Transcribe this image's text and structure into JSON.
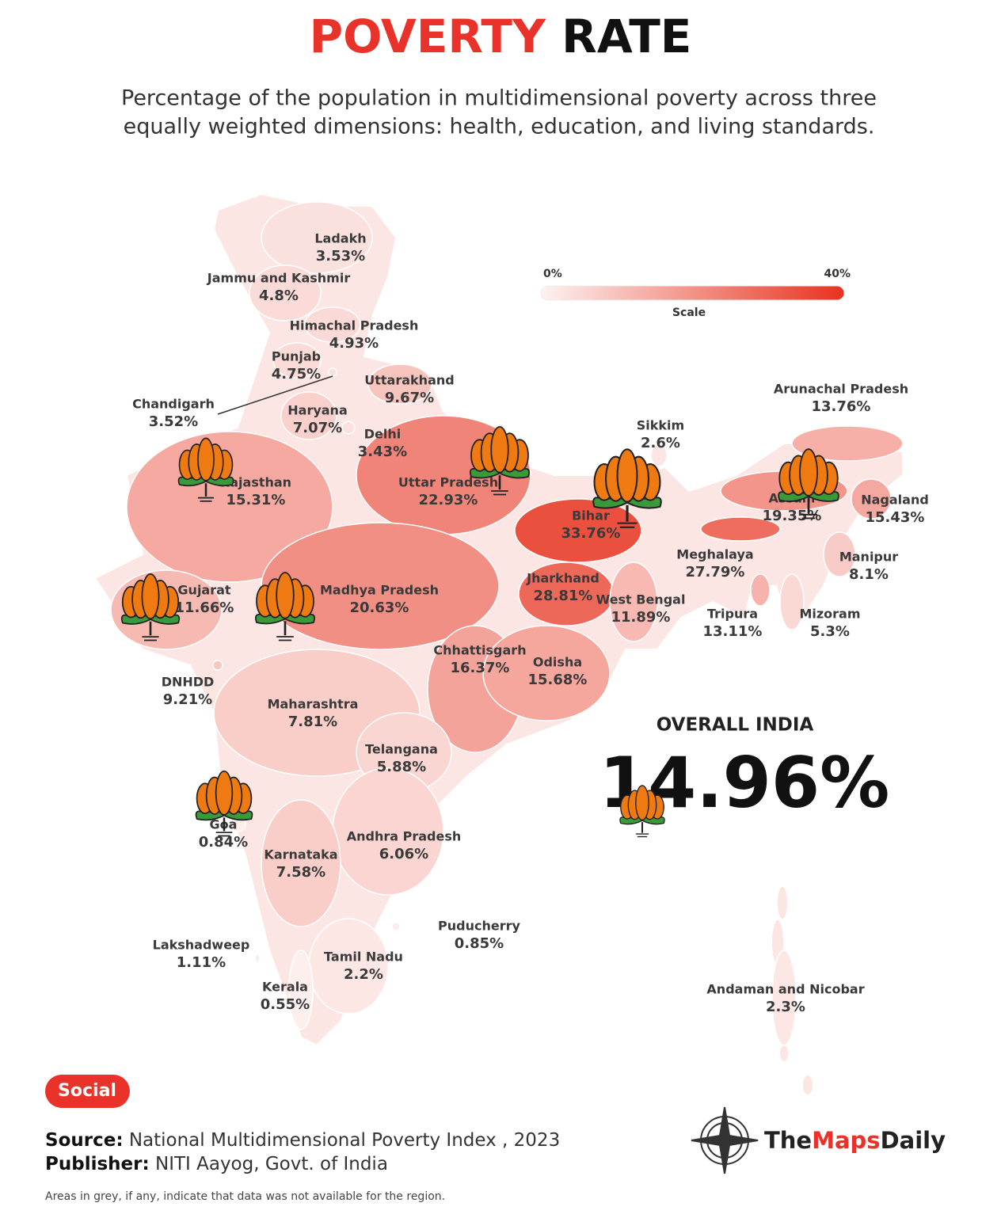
{
  "title": {
    "part1": "POVERTY",
    "part2": "RATE"
  },
  "subtitle": [
    "Percentage of the population in multidimensional poverty across three",
    "equally weighted dimensions: health, education, and living standards."
  ],
  "scale": {
    "min": 0,
    "max": 40,
    "min_label": "0%",
    "max_label": "40%",
    "label": "Scale",
    "colors": [
      "#fdf2f1",
      "#e8321e"
    ]
  },
  "regions": [
    {
      "name": "Ladakh",
      "value": 3.53,
      "value_label": "3.53%"
    },
    {
      "name": "Jammu and Kashmir",
      "value": 4.8,
      "value_label": "4.8%"
    },
    {
      "name": "Himachal Pradesh",
      "value": 4.93,
      "value_label": "4.93%"
    },
    {
      "name": "Punjab",
      "value": 4.75,
      "value_label": "4.75%"
    },
    {
      "name": "Uttarakhand",
      "value": 9.67,
      "value_label": "9.67%"
    },
    {
      "name": "Chandigarh",
      "value": 3.52,
      "value_label": "3.52%"
    },
    {
      "name": "Haryana",
      "value": 7.07,
      "value_label": "7.07%"
    },
    {
      "name": "Delhi",
      "value": 3.43,
      "value_label": "3.43%"
    },
    {
      "name": "Sikkim",
      "value": 2.6,
      "value_label": "2.6%"
    },
    {
      "name": "Arunachal Pradesh",
      "value": 13.76,
      "value_label": "13.76%"
    },
    {
      "name": "Rajasthan",
      "value": 15.31,
      "value_label": "15.31%"
    },
    {
      "name": "Uttar Pradesh",
      "value": 22.93,
      "value_label": "22.93%"
    },
    {
      "name": "Bihar",
      "value": 33.76,
      "value_label": "33.76%"
    },
    {
      "name": "Assam",
      "value": 19.35,
      "value_label": "19.35%"
    },
    {
      "name": "Nagaland",
      "value": 15.43,
      "value_label": "15.43%"
    },
    {
      "name": "Meghalaya",
      "value": 27.79,
      "value_label": "27.79%"
    },
    {
      "name": "Manipur",
      "value": 8.1,
      "value_label": "8.1%"
    },
    {
      "name": "Jharkhand",
      "value": 28.81,
      "value_label": "28.81%"
    },
    {
      "name": "Gujarat",
      "value": 11.66,
      "value_label": "11.66%"
    },
    {
      "name": "Madhya Pradesh",
      "value": 20.63,
      "value_label": "20.63%"
    },
    {
      "name": "West Bengal",
      "value": 11.89,
      "value_label": "11.89%"
    },
    {
      "name": "Tripura",
      "value": 13.11,
      "value_label": "13.11%"
    },
    {
      "name": "Mizoram",
      "value": 5.3,
      "value_label": "5.3%"
    },
    {
      "name": "Chhattisgarh",
      "value": 16.37,
      "value_label": "16.37%"
    },
    {
      "name": "Odisha",
      "value": 15.68,
      "value_label": "15.68%"
    },
    {
      "name": "DNHDD",
      "value": 9.21,
      "value_label": "9.21%"
    },
    {
      "name": "Maharashtra",
      "value": 7.81,
      "value_label": "7.81%"
    },
    {
      "name": "Telangana",
      "value": 5.88,
      "value_label": "5.88%"
    },
    {
      "name": "Goa",
      "value": 0.84,
      "value_label": "0.84%"
    },
    {
      "name": "Andhra Pradesh",
      "value": 6.06,
      "value_label": "6.06%"
    },
    {
      "name": "Karnataka",
      "value": 7.58,
      "value_label": "7.58%"
    },
    {
      "name": "Puducherry",
      "value": 0.85,
      "value_label": "0.85%"
    },
    {
      "name": "Lakshadweep",
      "value": 1.11,
      "value_label": "1.11%"
    },
    {
      "name": "Tamil Nadu",
      "value": 2.2,
      "value_label": "2.2%"
    },
    {
      "name": "Kerala",
      "value": 0.55,
      "value_label": "0.55%"
    },
    {
      "name": "Andaman and Nicobar",
      "value": 2.3,
      "value_label": "2.3%"
    }
  ],
  "overall": {
    "label": "OVERALL INDIA",
    "value": 14.96,
    "value_label": "14.96%"
  },
  "badge": "Social",
  "source": {
    "label": "Source:",
    "text": "National Multidimensional Poverty Index , 2023"
  },
  "publisher": {
    "label": "Publisher:",
    "text": "NITI Aayog, Govt. of India"
  },
  "note": "Areas in grey, if any, indicate that data was not available for the region.",
  "brand": [
    "The",
    "Maps",
    "Daily"
  ]
}
